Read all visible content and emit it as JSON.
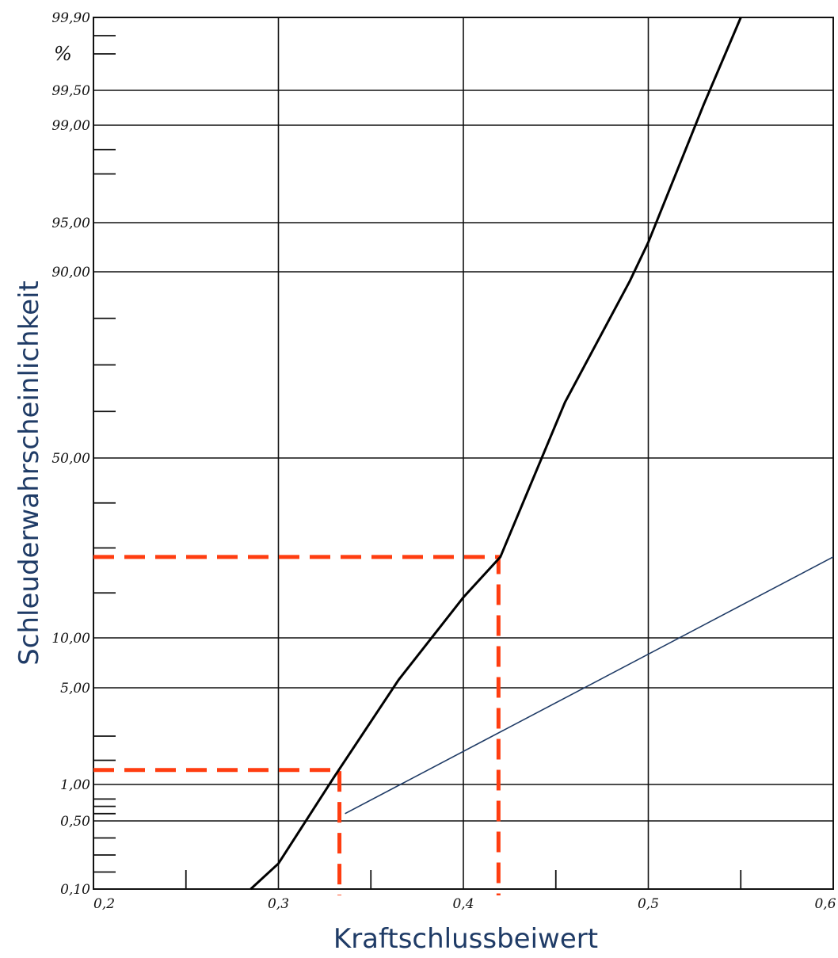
{
  "chart_data": {
    "type": "line",
    "title": "",
    "xlabel": "Kraftschlussbeiwert",
    "ylabel": "Schleuderwahrscheinlichkeit",
    "y_unit": "%",
    "xlim": [
      0.2,
      0.6
    ],
    "x_ticks": [
      {
        "value": 0.2,
        "label": "0,2"
      },
      {
        "value": 0.3,
        "label": "0,3"
      },
      {
        "value": 0.4,
        "label": "0,4"
      },
      {
        "value": 0.5,
        "label": "0,5"
      },
      {
        "value": 0.6,
        "label": "0,6"
      }
    ],
    "y_scale": "probability",
    "y_ticks": [
      {
        "value": 0.1,
        "label": "0,10"
      },
      {
        "value": 0.5,
        "label": "0,50"
      },
      {
        "value": 1,
        "label": "1,00"
      },
      {
        "value": 5,
        "label": "5,00"
      },
      {
        "value": 10,
        "label": "10,00"
      },
      {
        "value": 50,
        "label": "50,00"
      },
      {
        "value": 90,
        "label": "90,00"
      },
      {
        "value": 95,
        "label": "95,00"
      },
      {
        "value": 99,
        "label": "99,00"
      },
      {
        "value": 99.5,
        "label": "99,50"
      },
      {
        "value": 99.9,
        "label": "99,90"
      }
    ],
    "grid": true,
    "series": [
      {
        "color": "#000000",
        "x": [
          0.285,
          0.3,
          0.33,
          0.365,
          0.4,
          0.42,
          0.455,
          0.49,
          0.5,
          0.53,
          0.55
        ],
        "y": [
          0.1,
          0.25,
          1.3,
          5.8,
          19,
          28,
          62,
          88,
          93,
          99.3,
          99.9
        ]
      }
    ],
    "reference_lines": [
      {
        "color": "#ff3d10",
        "x": 0.333,
        "y": 1.6
      },
      {
        "color": "#ff3d10",
        "x": 0.419,
        "y": 28
      }
    ],
    "annotation_line": {
      "color": "#1f3b66",
      "from": {
        "x": 0.336,
        "y": 0.6
      },
      "to": {
        "x": 0.6,
        "y": 28
      }
    }
  }
}
